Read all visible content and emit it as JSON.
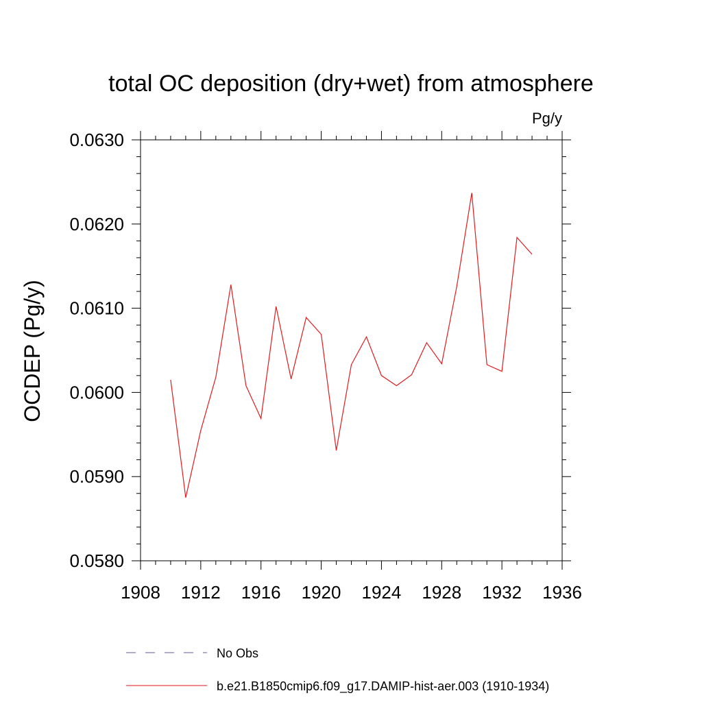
{
  "chart_data": {
    "type": "line",
    "title": "total OC deposition (dry+wet) from atmosphere",
    "units": "Pg/y",
    "ylabel": "OCDEP  (Pg/y)",
    "xlabel": "",
    "xlim": [
      1908,
      1936
    ],
    "ylim": [
      0.058,
      0.063
    ],
    "xticks": [
      1908,
      1912,
      1916,
      1920,
      1924,
      1928,
      1932,
      1936
    ],
    "yticks": [
      0.058,
      0.059,
      0.06,
      0.061,
      0.062,
      0.063
    ],
    "ytick_labels": [
      "0.0580",
      "0.0590",
      "0.0600",
      "0.0610",
      "0.0620",
      "0.0630"
    ],
    "legend_placement": "bottom",
    "series": [
      {
        "name": "b.e21.B1850cmip6.f09_g17.DAMIP-hist-aer.003 (1910-1934)",
        "color": "#e31a1c",
        "style": "solid",
        "x": [
          1910,
          1911,
          1912,
          1913,
          1914,
          1915,
          1916,
          1917,
          1918,
          1919,
          1920,
          1921,
          1922,
          1923,
          1924,
          1925,
          1926,
          1927,
          1928,
          1929,
          1930,
          1931,
          1932,
          1933,
          1934
        ],
        "y": [
          0.06015,
          0.05875,
          0.05955,
          0.06018,
          0.06128,
          0.06008,
          0.05969,
          0.06102,
          0.06016,
          0.06089,
          0.06069,
          0.05931,
          0.06033,
          0.06066,
          0.0602,
          0.06008,
          0.06021,
          0.06059,
          0.06034,
          0.06126,
          0.06237,
          0.06033,
          0.06025,
          0.06184,
          0.06164
        ]
      }
    ],
    "legend": [
      {
        "label": "No Obs",
        "color": "#5a5aa8",
        "style": "dashed"
      },
      {
        "label": "b.e21.B1850cmip6.f09_g17.DAMIP-hist-aer.003 (1910-1934)",
        "color": "#e31a1c",
        "style": "solid"
      }
    ]
  }
}
